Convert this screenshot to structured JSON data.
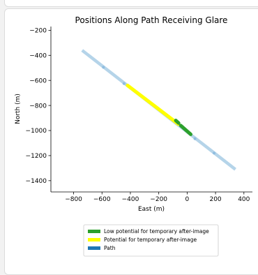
{
  "chart_data": {
    "type": "scatter",
    "title": "Positions Along Path Receiving Glare",
    "xlabel": "East (m)",
    "ylabel": "North (m)",
    "xlim": [
      -960,
      460
    ],
    "ylim": [
      -1490,
      -170
    ],
    "xticks": [
      -800,
      -600,
      -400,
      -200,
      0,
      200,
      400
    ],
    "yticks": [
      -200,
      -400,
      -600,
      -800,
      -1000,
      -1200,
      -1400
    ],
    "grid": false,
    "legend_position": "bottom-center",
    "path": {
      "start": [
        -740,
        -360
      ],
      "end": [
        340,
        -1310
      ]
    },
    "path_markers": [
      [
        -590,
        -495
      ],
      [
        -445,
        -625
      ],
      [
        55,
        -1065
      ],
      [
        190,
        -1180
      ]
    ],
    "series": [
      {
        "name": "Low potential for temporary after-image",
        "color": "#2ca02c",
        "segments": [
          [
            [
              -80,
              -920
            ],
            [
              -60,
              -940
            ]
          ],
          [
            [
              -45,
              -960
            ],
            [
              25,
              -1030
            ]
          ]
        ]
      },
      {
        "name": "Potential for temporary after-image",
        "color": "#ffff00",
        "segments": [
          [
            [
              -420,
              -640
            ],
            [
              -60,
              -950
            ]
          ]
        ]
      },
      {
        "name": "Path",
        "color": "#1f77b4",
        "path_color": "#b5d4e9",
        "marker_color": "#8fbde0"
      }
    ]
  }
}
